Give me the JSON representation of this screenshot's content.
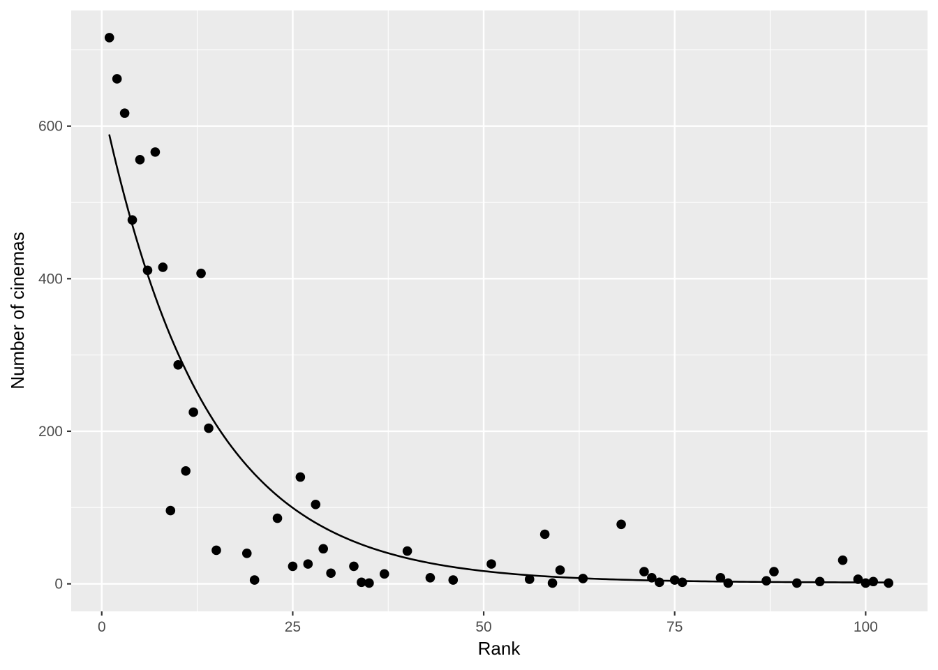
{
  "chart_data": {
    "type": "scatter",
    "title": "",
    "xlabel": "Rank",
    "ylabel": "Number of cinemas",
    "legend": "none",
    "grid": "major+minor",
    "panel_color": "#EBEBEB",
    "grid_color": "#FFFFFF",
    "point_color": "#000000",
    "line_color": "#000000",
    "tick_label_color": "#4D4D4D",
    "tick_mark_color": "#333333",
    "axis_title_color": "#000000",
    "xlim": [
      -4,
      108.1
    ],
    "ylim": [
      -36.1,
      751.6
    ],
    "x_ticks": [
      0,
      25,
      50,
      75,
      100
    ],
    "y_ticks": [
      0,
      200,
      400,
      600
    ],
    "x_minor": [
      12.5,
      37.5,
      62.5,
      87.5
    ],
    "y_minor": [
      100,
      300,
      500,
      700
    ],
    "points": [
      [
        1,
        716
      ],
      [
        2,
        662
      ],
      [
        3,
        617
      ],
      [
        4,
        477
      ],
      [
        5,
        556
      ],
      [
        6,
        411
      ],
      [
        7,
        566
      ],
      [
        8,
        415
      ],
      [
        9,
        96
      ],
      [
        10,
        287
      ],
      [
        11,
        148
      ],
      [
        12,
        225
      ],
      [
        13,
        407
      ],
      [
        14,
        204
      ],
      [
        15,
        44
      ],
      [
        19,
        40
      ],
      [
        20,
        5
      ],
      [
        23,
        86
      ],
      [
        25,
        23
      ],
      [
        26,
        140
      ],
      [
        27,
        26
      ],
      [
        28,
        104
      ],
      [
        29,
        46
      ],
      [
        30,
        14
      ],
      [
        33,
        23
      ],
      [
        34,
        2
      ],
      [
        35,
        1
      ],
      [
        37,
        13
      ],
      [
        40,
        43
      ],
      [
        43,
        8
      ],
      [
        46,
        5
      ],
      [
        51,
        26
      ],
      [
        56,
        6
      ],
      [
        58,
        65
      ],
      [
        59,
        1
      ],
      [
        60,
        18
      ],
      [
        63,
        7
      ],
      [
        68,
        78
      ],
      [
        71,
        16
      ],
      [
        72,
        8
      ],
      [
        73,
        2
      ],
      [
        75,
        5
      ],
      [
        76,
        2
      ],
      [
        81,
        8
      ],
      [
        82,
        1
      ],
      [
        87,
        4
      ],
      [
        88,
        16
      ],
      [
        91,
        1
      ],
      [
        94,
        3
      ],
      [
        97,
        31
      ],
      [
        99,
        6
      ],
      [
        100,
        1
      ],
      [
        101,
        3
      ],
      [
        103,
        1
      ]
    ],
    "trend": {
      "model": "exponential",
      "a": 632,
      "b": 0.0745,
      "c": 1.5,
      "x_start": 1,
      "x_end": 103
    }
  }
}
